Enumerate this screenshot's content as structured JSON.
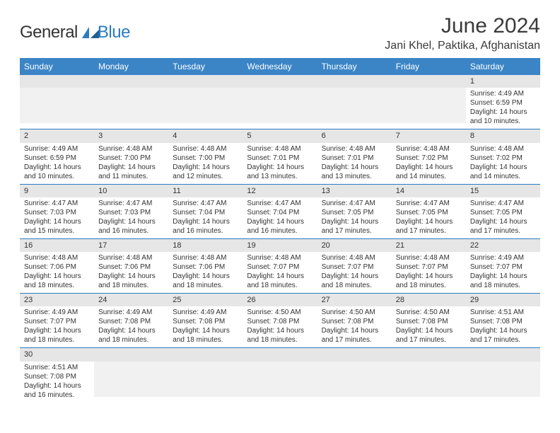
{
  "logo": {
    "general": "General",
    "blue": "Blue"
  },
  "header": {
    "month_title": "June 2024",
    "location": "Jani Khel, Paktika, Afghanistan"
  },
  "styles": {
    "header_bg": "#3b85c6",
    "header_fg": "#ffffff",
    "daynum_bg": "#e6e6e6",
    "cell_border": "#2a7bbf",
    "text_color": "#333333",
    "logo_blue": "#2a7bbf"
  },
  "weekdays": [
    "Sunday",
    "Monday",
    "Tuesday",
    "Wednesday",
    "Thursday",
    "Friday",
    "Saturday"
  ],
  "weeks": [
    [
      null,
      null,
      null,
      null,
      null,
      null,
      {
        "n": "1",
        "sr": "Sunrise: 4:49 AM",
        "ss": "Sunset: 6:59 PM",
        "d1": "Daylight: 14 hours",
        "d2": "and 10 minutes."
      }
    ],
    [
      {
        "n": "2",
        "sr": "Sunrise: 4:49 AM",
        "ss": "Sunset: 6:59 PM",
        "d1": "Daylight: 14 hours",
        "d2": "and 10 minutes."
      },
      {
        "n": "3",
        "sr": "Sunrise: 4:48 AM",
        "ss": "Sunset: 7:00 PM",
        "d1": "Daylight: 14 hours",
        "d2": "and 11 minutes."
      },
      {
        "n": "4",
        "sr": "Sunrise: 4:48 AM",
        "ss": "Sunset: 7:00 PM",
        "d1": "Daylight: 14 hours",
        "d2": "and 12 minutes."
      },
      {
        "n": "5",
        "sr": "Sunrise: 4:48 AM",
        "ss": "Sunset: 7:01 PM",
        "d1": "Daylight: 14 hours",
        "d2": "and 13 minutes."
      },
      {
        "n": "6",
        "sr": "Sunrise: 4:48 AM",
        "ss": "Sunset: 7:01 PM",
        "d1": "Daylight: 14 hours",
        "d2": "and 13 minutes."
      },
      {
        "n": "7",
        "sr": "Sunrise: 4:48 AM",
        "ss": "Sunset: 7:02 PM",
        "d1": "Daylight: 14 hours",
        "d2": "and 14 minutes."
      },
      {
        "n": "8",
        "sr": "Sunrise: 4:48 AM",
        "ss": "Sunset: 7:02 PM",
        "d1": "Daylight: 14 hours",
        "d2": "and 14 minutes."
      }
    ],
    [
      {
        "n": "9",
        "sr": "Sunrise: 4:47 AM",
        "ss": "Sunset: 7:03 PM",
        "d1": "Daylight: 14 hours",
        "d2": "and 15 minutes."
      },
      {
        "n": "10",
        "sr": "Sunrise: 4:47 AM",
        "ss": "Sunset: 7:03 PM",
        "d1": "Daylight: 14 hours",
        "d2": "and 16 minutes."
      },
      {
        "n": "11",
        "sr": "Sunrise: 4:47 AM",
        "ss": "Sunset: 7:04 PM",
        "d1": "Daylight: 14 hours",
        "d2": "and 16 minutes."
      },
      {
        "n": "12",
        "sr": "Sunrise: 4:47 AM",
        "ss": "Sunset: 7:04 PM",
        "d1": "Daylight: 14 hours",
        "d2": "and 16 minutes."
      },
      {
        "n": "13",
        "sr": "Sunrise: 4:47 AM",
        "ss": "Sunset: 7:05 PM",
        "d1": "Daylight: 14 hours",
        "d2": "and 17 minutes."
      },
      {
        "n": "14",
        "sr": "Sunrise: 4:47 AM",
        "ss": "Sunset: 7:05 PM",
        "d1": "Daylight: 14 hours",
        "d2": "and 17 minutes."
      },
      {
        "n": "15",
        "sr": "Sunrise: 4:47 AM",
        "ss": "Sunset: 7:05 PM",
        "d1": "Daylight: 14 hours",
        "d2": "and 17 minutes."
      }
    ],
    [
      {
        "n": "16",
        "sr": "Sunrise: 4:48 AM",
        "ss": "Sunset: 7:06 PM",
        "d1": "Daylight: 14 hours",
        "d2": "and 18 minutes."
      },
      {
        "n": "17",
        "sr": "Sunrise: 4:48 AM",
        "ss": "Sunset: 7:06 PM",
        "d1": "Daylight: 14 hours",
        "d2": "and 18 minutes."
      },
      {
        "n": "18",
        "sr": "Sunrise: 4:48 AM",
        "ss": "Sunset: 7:06 PM",
        "d1": "Daylight: 14 hours",
        "d2": "and 18 minutes."
      },
      {
        "n": "19",
        "sr": "Sunrise: 4:48 AM",
        "ss": "Sunset: 7:07 PM",
        "d1": "Daylight: 14 hours",
        "d2": "and 18 minutes."
      },
      {
        "n": "20",
        "sr": "Sunrise: 4:48 AM",
        "ss": "Sunset: 7:07 PM",
        "d1": "Daylight: 14 hours",
        "d2": "and 18 minutes."
      },
      {
        "n": "21",
        "sr": "Sunrise: 4:48 AM",
        "ss": "Sunset: 7:07 PM",
        "d1": "Daylight: 14 hours",
        "d2": "and 18 minutes."
      },
      {
        "n": "22",
        "sr": "Sunrise: 4:49 AM",
        "ss": "Sunset: 7:07 PM",
        "d1": "Daylight: 14 hours",
        "d2": "and 18 minutes."
      }
    ],
    [
      {
        "n": "23",
        "sr": "Sunrise: 4:49 AM",
        "ss": "Sunset: 7:07 PM",
        "d1": "Daylight: 14 hours",
        "d2": "and 18 minutes."
      },
      {
        "n": "24",
        "sr": "Sunrise: 4:49 AM",
        "ss": "Sunset: 7:08 PM",
        "d1": "Daylight: 14 hours",
        "d2": "and 18 minutes."
      },
      {
        "n": "25",
        "sr": "Sunrise: 4:49 AM",
        "ss": "Sunset: 7:08 PM",
        "d1": "Daylight: 14 hours",
        "d2": "and 18 minutes."
      },
      {
        "n": "26",
        "sr": "Sunrise: 4:50 AM",
        "ss": "Sunset: 7:08 PM",
        "d1": "Daylight: 14 hours",
        "d2": "and 18 minutes."
      },
      {
        "n": "27",
        "sr": "Sunrise: 4:50 AM",
        "ss": "Sunset: 7:08 PM",
        "d1": "Daylight: 14 hours",
        "d2": "and 17 minutes."
      },
      {
        "n": "28",
        "sr": "Sunrise: 4:50 AM",
        "ss": "Sunset: 7:08 PM",
        "d1": "Daylight: 14 hours",
        "d2": "and 17 minutes."
      },
      {
        "n": "29",
        "sr": "Sunrise: 4:51 AM",
        "ss": "Sunset: 7:08 PM",
        "d1": "Daylight: 14 hours",
        "d2": "and 17 minutes."
      }
    ],
    [
      {
        "n": "30",
        "sr": "Sunrise: 4:51 AM",
        "ss": "Sunset: 7:08 PM",
        "d1": "Daylight: 14 hours",
        "d2": "and 16 minutes."
      },
      null,
      null,
      null,
      null,
      null,
      null
    ]
  ]
}
